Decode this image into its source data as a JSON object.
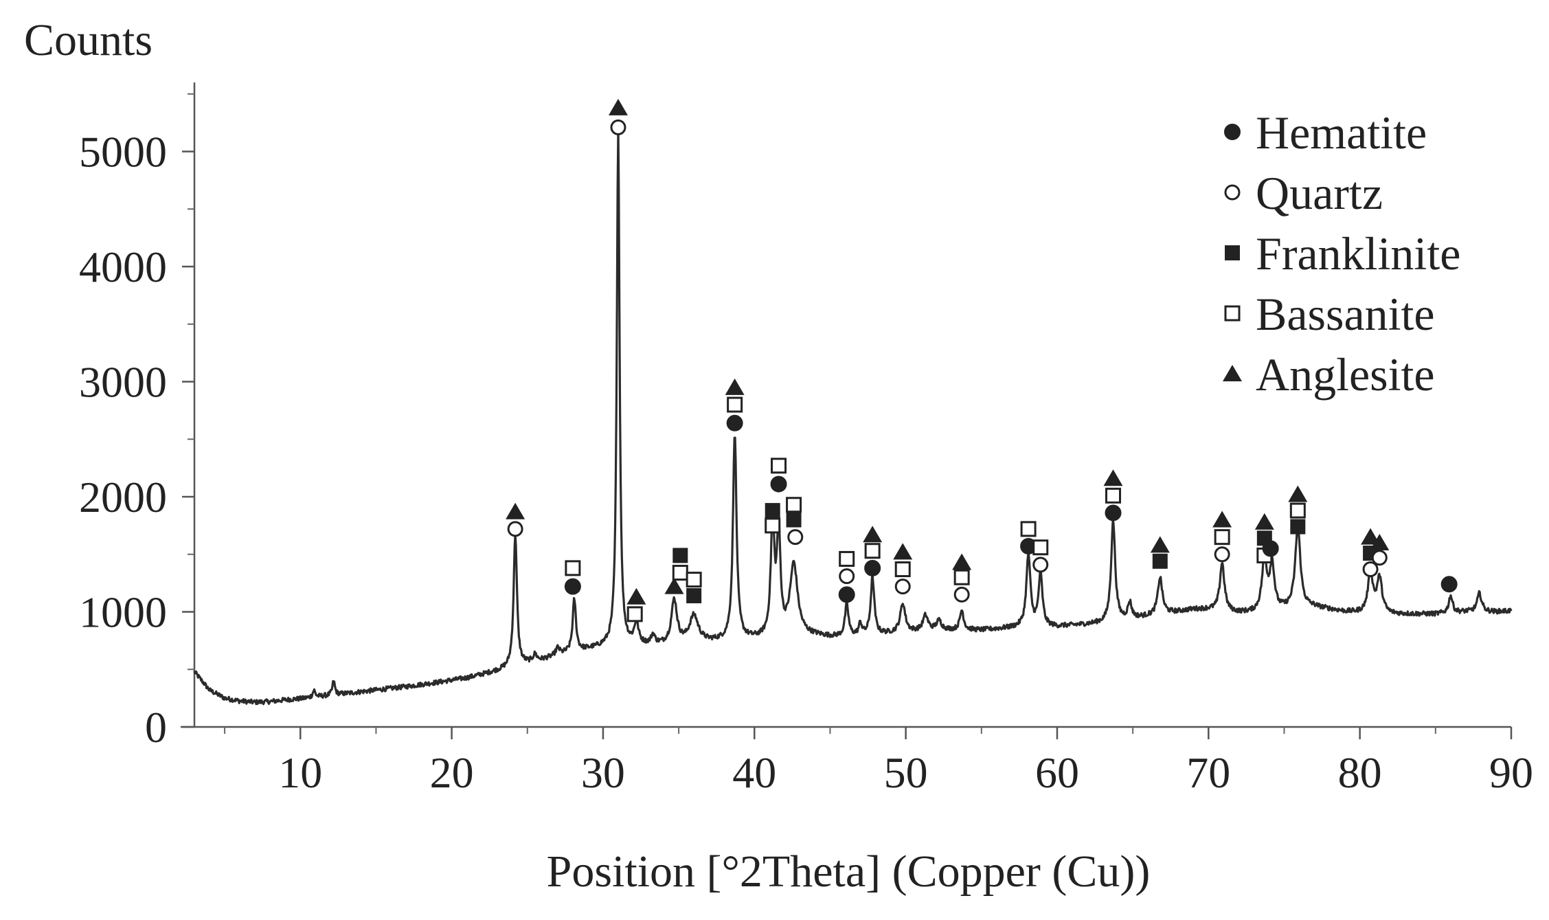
{
  "chart_data": {
    "type": "line",
    "title": "",
    "ylabel": "Counts",
    "xlabel": "Position [°2Theta] (Copper (Cu))",
    "xlim": [
      3,
      90
    ],
    "ylim": [
      0,
      5600
    ],
    "x_ticks": [
      10,
      20,
      30,
      40,
      50,
      60,
      70,
      80,
      90
    ],
    "y_ticks": [
      0,
      1000,
      2000,
      3000,
      4000,
      5000
    ],
    "grid": false,
    "legend_position": "top-right",
    "legend": [
      {
        "name": "Hematite",
        "marker": "filled-circle"
      },
      {
        "name": "Quartz",
        "marker": "open-circle"
      },
      {
        "name": "Franklinite",
        "marker": "filled-square"
      },
      {
        "name": "Bassanite",
        "marker": "open-square"
      },
      {
        "name": "Anglesite",
        "marker": "filled-triangle"
      }
    ],
    "baseline": [
      [
        3,
        480
      ],
      [
        4,
        320
      ],
      [
        5,
        250
      ],
      [
        6,
        225
      ],
      [
        7,
        215
      ],
      [
        8,
        220
      ],
      [
        9,
        235
      ],
      [
        10,
        245
      ],
      [
        11,
        260
      ],
      [
        12,
        275
      ],
      [
        13,
        290
      ],
      [
        14,
        305
      ],
      [
        15,
        320
      ],
      [
        16,
        335
      ],
      [
        17,
        350
      ],
      [
        18,
        368
      ],
      [
        19,
        385
      ],
      [
        20,
        405
      ],
      [
        21,
        425
      ],
      [
        22,
        455
      ],
      [
        23,
        485
      ],
      [
        24,
        520
      ],
      [
        25,
        550
      ],
      [
        26,
        580
      ],
      [
        27,
        620
      ],
      [
        28,
        650
      ],
      [
        29,
        670
      ],
      [
        30,
        690
      ],
      [
        31,
        700
      ],
      [
        32,
        700
      ],
      [
        33,
        705
      ],
      [
        34,
        710
      ],
      [
        35,
        720
      ],
      [
        36,
        730
      ],
      [
        37,
        735
      ],
      [
        38,
        745
      ],
      [
        39,
        755
      ],
      [
        40,
        760
      ],
      [
        41,
        770
      ],
      [
        42,
        780
      ],
      [
        43,
        790
      ],
      [
        44,
        790
      ],
      [
        45,
        780
      ],
      [
        46,
        780
      ],
      [
        47,
        790
      ],
      [
        48,
        800
      ],
      [
        49,
        810
      ],
      [
        50,
        820
      ],
      [
        51,
        830
      ],
      [
        52,
        840
      ],
      [
        53,
        840
      ],
      [
        54,
        840
      ],
      [
        55,
        840
      ],
      [
        56,
        850
      ],
      [
        57,
        860
      ],
      [
        58,
        870
      ],
      [
        59,
        870
      ],
      [
        60,
        870
      ],
      [
        61,
        880
      ],
      [
        62,
        890
      ],
      [
        63,
        900
      ],
      [
        64,
        920
      ],
      [
        65,
        940
      ],
      [
        66,
        960
      ],
      [
        67,
        980
      ],
      [
        68,
        1000
      ],
      [
        69,
        1020
      ],
      [
        70,
        1020
      ],
      [
        71,
        1000
      ],
      [
        72,
        990
      ],
      [
        73,
        990
      ],
      [
        74,
        1000
      ],
      [
        75,
        1020
      ],
      [
        76,
        1040
      ],
      [
        77,
        1040
      ],
      [
        78,
        1020
      ],
      [
        79,
        1000
      ],
      [
        80,
        990
      ],
      [
        81,
        990
      ],
      [
        82,
        980
      ],
      [
        83,
        980
      ],
      [
        84,
        980
      ],
      [
        85,
        980
      ],
      [
        86,
        990
      ],
      [
        87,
        1000
      ],
      [
        88,
        1000
      ],
      [
        89,
        1000
      ],
      [
        90,
        1010
      ]
    ],
    "peaks": [
      {
        "x": 10.9,
        "height": 60,
        "width": 0.1
      },
      {
        "x": 12.2,
        "height": 120,
        "width": 0.1
      },
      {
        "x": 24.2,
        "height": 1150,
        "width": 0.13
      },
      {
        "x": 25.5,
        "height": 60,
        "width": 0.15
      },
      {
        "x": 27.0,
        "height": 60,
        "width": 0.15
      },
      {
        "x": 28.1,
        "height": 450,
        "width": 0.13
      },
      {
        "x": 31.0,
        "height": 4500,
        "width": 0.11
      },
      {
        "x": 32.2,
        "height": 180,
        "width": 0.18
      },
      {
        "x": 33.3,
        "height": 80,
        "width": 0.15
      },
      {
        "x": 34.7,
        "height": 380,
        "width": 0.22
      },
      {
        "x": 36.0,
        "height": 230,
        "width": 0.35
      },
      {
        "x": 38.7,
        "height": 1800,
        "width": 0.14
      },
      {
        "x": 41.2,
        "height": 1000,
        "width": 0.14
      },
      {
        "x": 41.6,
        "height": 900,
        "width": 0.14
      },
      {
        "x": 42.6,
        "height": 620,
        "width": 0.3
      },
      {
        "x": 46.1,
        "height": 280,
        "width": 0.14
      },
      {
        "x": 47.0,
        "height": 100,
        "width": 0.12
      },
      {
        "x": 47.8,
        "height": 500,
        "width": 0.14
      },
      {
        "x": 49.8,
        "height": 250,
        "width": 0.2
      },
      {
        "x": 51.3,
        "height": 130,
        "width": 0.2
      },
      {
        "x": 52.2,
        "height": 80,
        "width": 0.2
      },
      {
        "x": 53.7,
        "height": 170,
        "width": 0.15
      },
      {
        "x": 58.1,
        "height": 620,
        "width": 0.16
      },
      {
        "x": 58.9,
        "height": 460,
        "width": 0.15
      },
      {
        "x": 63.7,
        "height": 880,
        "width": 0.16
      },
      {
        "x": 64.8,
        "height": 140,
        "width": 0.15
      },
      {
        "x": 66.8,
        "height": 320,
        "width": 0.18
      },
      {
        "x": 70.9,
        "height": 420,
        "width": 0.18
      },
      {
        "x": 73.7,
        "height": 450,
        "width": 0.2
      },
      {
        "x": 74.2,
        "height": 400,
        "width": 0.18
      },
      {
        "x": 75.9,
        "height": 700,
        "width": 0.2
      },
      {
        "x": 80.7,
        "height": 340,
        "width": 0.2
      },
      {
        "x": 81.3,
        "height": 300,
        "width": 0.2
      },
      {
        "x": 86.0,
        "height": 150,
        "width": 0.15
      },
      {
        "x": 87.9,
        "height": 160,
        "width": 0.18
      }
    ],
    "annotations": [
      {
        "x": 24.2,
        "y": 1870,
        "marker": "filled-triangle"
      },
      {
        "x": 24.2,
        "y": 1720,
        "marker": "open-circle"
      },
      {
        "x": 28.0,
        "y": 1380,
        "marker": "open-square"
      },
      {
        "x": 28.0,
        "y": 1220,
        "marker": "filled-circle"
      },
      {
        "x": 31.0,
        "y": 5380,
        "marker": "filled-triangle"
      },
      {
        "x": 31.0,
        "y": 5210,
        "marker": "open-circle"
      },
      {
        "x": 32.2,
        "y": 1130,
        "marker": "filled-triangle"
      },
      {
        "x": 32.1,
        "y": 980,
        "marker": "open-square"
      },
      {
        "x": 35.1,
        "y": 1490,
        "marker": "filled-square"
      },
      {
        "x": 34.7,
        "y": 1220,
        "marker": "filled-triangle"
      },
      {
        "x": 35.1,
        "y": 1340,
        "marker": "open-square"
      },
      {
        "x": 36.0,
        "y": 1280,
        "marker": "open-square"
      },
      {
        "x": 36.0,
        "y": 1140,
        "marker": "filled-square"
      },
      {
        "x": 38.7,
        "y": 2950,
        "marker": "filled-triangle"
      },
      {
        "x": 38.7,
        "y": 2800,
        "marker": "open-square"
      },
      {
        "x": 38.7,
        "y": 2640,
        "marker": "filled-circle"
      },
      {
        "x": 41.2,
        "y": 1880,
        "marker": "filled-square"
      },
      {
        "x": 41.2,
        "y": 1750,
        "marker": "open-square"
      },
      {
        "x": 41.6,
        "y": 2270,
        "marker": "open-square"
      },
      {
        "x": 41.6,
        "y": 2110,
        "marker": "filled-circle"
      },
      {
        "x": 42.6,
        "y": 1930,
        "marker": "open-square"
      },
      {
        "x": 42.6,
        "y": 1800,
        "marker": "filled-square"
      },
      {
        "x": 42.7,
        "y": 1650,
        "marker": "open-circle"
      },
      {
        "x": 46.1,
        "y": 1460,
        "marker": "open-square"
      },
      {
        "x": 46.1,
        "y": 1310,
        "marker": "open-circle"
      },
      {
        "x": 46.1,
        "y": 1150,
        "marker": "filled-circle"
      },
      {
        "x": 47.8,
        "y": 1670,
        "marker": "filled-triangle"
      },
      {
        "x": 47.8,
        "y": 1530,
        "marker": "open-square"
      },
      {
        "x": 47.8,
        "y": 1380,
        "marker": "filled-circle"
      },
      {
        "x": 49.8,
        "y": 1520,
        "marker": "filled-triangle"
      },
      {
        "x": 49.8,
        "y": 1370,
        "marker": "open-square"
      },
      {
        "x": 49.8,
        "y": 1220,
        "marker": "open-circle"
      },
      {
        "x": 53.7,
        "y": 1430,
        "marker": "filled-triangle"
      },
      {
        "x": 53.7,
        "y": 1300,
        "marker": "open-square"
      },
      {
        "x": 53.7,
        "y": 1150,
        "marker": "open-circle"
      },
      {
        "x": 58.1,
        "y": 1720,
        "marker": "open-square"
      },
      {
        "x": 58.1,
        "y": 1570,
        "marker": "filled-circle"
      },
      {
        "x": 58.9,
        "y": 1560,
        "marker": "open-square"
      },
      {
        "x": 58.9,
        "y": 1410,
        "marker": "open-circle"
      },
      {
        "x": 63.7,
        "y": 2160,
        "marker": "filled-triangle"
      },
      {
        "x": 63.7,
        "y": 2010,
        "marker": "open-square"
      },
      {
        "x": 63.7,
        "y": 1860,
        "marker": "filled-circle"
      },
      {
        "x": 66.8,
        "y": 1580,
        "marker": "filled-triangle"
      },
      {
        "x": 66.8,
        "y": 1440,
        "marker": "filled-square"
      },
      {
        "x": 70.9,
        "y": 1800,
        "marker": "filled-triangle"
      },
      {
        "x": 70.9,
        "y": 1650,
        "marker": "open-square"
      },
      {
        "x": 70.9,
        "y": 1500,
        "marker": "open-circle"
      },
      {
        "x": 73.7,
        "y": 1780,
        "marker": "filled-triangle"
      },
      {
        "x": 73.7,
        "y": 1640,
        "marker": "filled-square"
      },
      {
        "x": 73.7,
        "y": 1490,
        "marker": "open-square"
      },
      {
        "x": 74.1,
        "y": 1550,
        "marker": "filled-circle"
      },
      {
        "x": 75.9,
        "y": 2020,
        "marker": "filled-triangle"
      },
      {
        "x": 75.9,
        "y": 1880,
        "marker": "open-square"
      },
      {
        "x": 75.9,
        "y": 1740,
        "marker": "filled-square"
      },
      {
        "x": 80.7,
        "y": 1650,
        "marker": "filled-triangle"
      },
      {
        "x": 80.7,
        "y": 1510,
        "marker": "filled-square"
      },
      {
        "x": 80.7,
        "y": 1370,
        "marker": "open-circle"
      },
      {
        "x": 81.3,
        "y": 1600,
        "marker": "filled-triangle"
      },
      {
        "x": 81.3,
        "y": 1470,
        "marker": "open-circle"
      },
      {
        "x": 85.9,
        "y": 1240,
        "marker": "filled-circle"
      }
    ]
  }
}
